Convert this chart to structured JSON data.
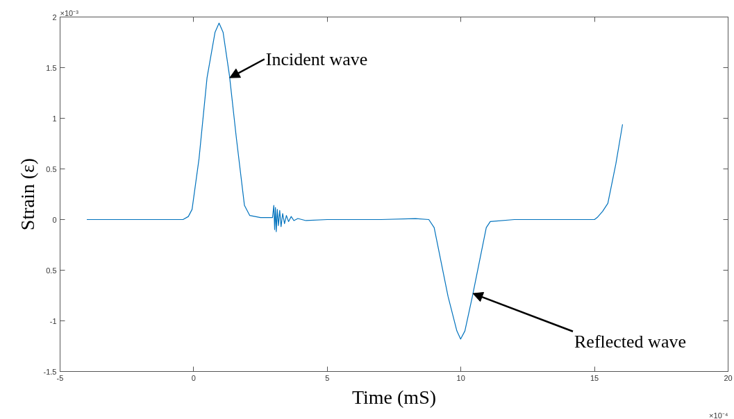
{
  "chart_data": {
    "type": "line",
    "xlabel": "Time (mS)",
    "ylabel": "Strain (ε)",
    "x": [
      -4.0,
      -3.0,
      -2.0,
      -1.0,
      -0.4,
      -0.2,
      -0.06,
      0.2,
      0.5,
      0.8,
      0.95,
      1.1,
      1.34,
      1.6,
      1.9,
      2.1,
      2.5,
      2.95,
      3.0,
      3.03,
      3.06,
      3.09,
      3.13,
      3.17,
      3.22,
      3.27,
      3.33,
      3.4,
      3.47,
      3.55,
      3.65,
      3.75,
      3.9,
      4.2,
      5.0,
      6.0,
      7.0,
      8.3,
      8.8,
      9.0,
      9.52,
      9.85,
      9.99,
      10.15,
      10.43,
      10.95,
      11.1,
      12.0,
      13.0,
      14.0,
      15.0,
      15.1,
      15.3,
      15.5,
      15.8,
      16.05
    ],
    "values": [
      0.0,
      0.0,
      0.0,
      0.0,
      0.0,
      0.03,
      0.1,
      0.6,
      1.4,
      1.85,
      1.94,
      1.85,
      1.42,
      0.8,
      0.14,
      0.04,
      0.02,
      0.02,
      0.14,
      -0.1,
      0.12,
      -0.12,
      0.1,
      -0.06,
      0.09,
      -0.07,
      0.06,
      -0.04,
      0.04,
      -0.02,
      0.03,
      -0.01,
      0.01,
      -0.01,
      0.0,
      0.0,
      0.0,
      0.01,
      0.0,
      -0.08,
      -0.76,
      -1.1,
      -1.18,
      -1.1,
      -0.76,
      -0.08,
      -0.02,
      0.0,
      0.0,
      0.0,
      0.0,
      0.02,
      0.08,
      0.16,
      0.55,
      0.94
    ],
    "color": "#0072bd",
    "xlim": [
      -5,
      20
    ],
    "ylim": [
      -1.5,
      2
    ],
    "xticks": [
      -5,
      0,
      5,
      10,
      15,
      20
    ],
    "yticks": [
      -1.5,
      -1,
      {
        "value": -0.5,
        "label": "0.5"
      },
      0,
      0.5,
      1,
      1.5,
      2
    ],
    "grid": false,
    "annotations": [
      "×10⁻³",
      "×10⁻⁴",
      {
        "text": "Incident wave",
        "x": 1.35,
        "y": 1.4
      },
      {
        "text": "Reflected wave",
        "x": 10.45,
        "y": -0.73
      }
    ]
  }
}
